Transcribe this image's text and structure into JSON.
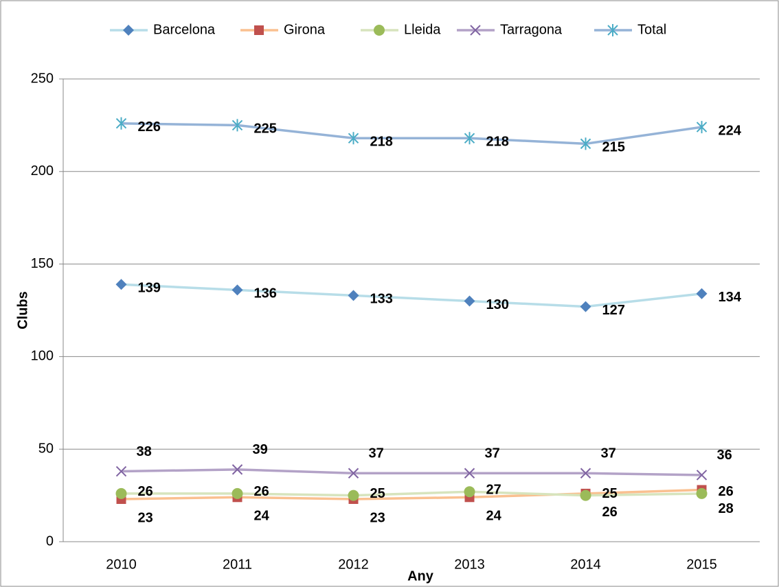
{
  "chart_data": {
    "type": "line",
    "x_label": "Any",
    "y_label": "Clubs",
    "categories": [
      "2010",
      "2011",
      "2012",
      "2013",
      "2014",
      "2015"
    ],
    "series": [
      {
        "name": "Barcelona",
        "color": "#b7dde8",
        "marker_color": "#4f81bd",
        "marker": "diamond",
        "values": [
          139,
          136,
          133,
          130,
          127,
          134
        ]
      },
      {
        "name": "Girona",
        "color": "#fac090",
        "marker_color": "#c0504d",
        "marker": "square",
        "values": [
          23,
          24,
          23,
          24,
          26,
          28
        ]
      },
      {
        "name": "Lleida",
        "color": "#d7e4bd",
        "marker_color": "#9bbb59",
        "marker": "circle",
        "values": [
          26,
          26,
          25,
          27,
          25,
          26
        ]
      },
      {
        "name": "Tarragona",
        "color": "#b3a2c7",
        "marker_color": "#8064a2",
        "marker": "x",
        "values": [
          38,
          39,
          37,
          37,
          37,
          36
        ]
      },
      {
        "name": "Total",
        "color": "#95b3d7",
        "marker_color": "#4bacc6",
        "marker": "star",
        "values": [
          226,
          225,
          218,
          218,
          215,
          224
        ]
      }
    ],
    "ylim": [
      0,
      250
    ],
    "yticks": [
      0,
      50,
      100,
      150,
      200,
      250
    ],
    "grid": true,
    "legend": "top"
  }
}
